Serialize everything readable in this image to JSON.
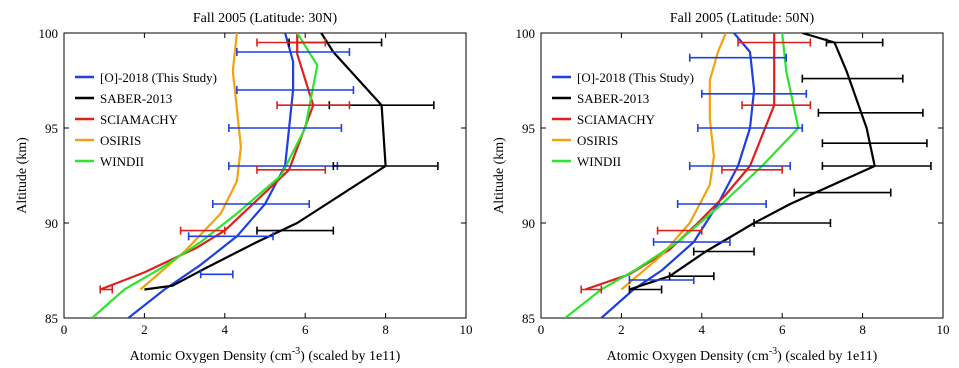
{
  "chart_data": [
    {
      "type": "line",
      "title": "Fall 2005 (Latitude: 30N)",
      "xlabel_main": "Atomic Oxygen Density (cm",
      "xlabel_sup": "-3",
      "xlabel_tail": ") (scaled by 1e11)",
      "ylabel": "Altitude (km)",
      "xlim": [
        0,
        10
      ],
      "ylim": [
        85,
        100
      ],
      "xticks": [
        0,
        2,
        4,
        6,
        8,
        10
      ],
      "yticks": [
        85,
        90,
        95,
        100
      ],
      "legend_position": "upper-left",
      "series": [
        {
          "name": "[O]-2018 (This Study)",
          "color": "#1f3fe0",
          "points": [
            [
              1.6,
              85.0
            ],
            [
              2.5,
              86.5
            ],
            [
              3.4,
              87.8
            ],
            [
              4.3,
              89.3
            ],
            [
              5.0,
              91.0
            ],
            [
              5.5,
              93.0
            ],
            [
              5.6,
              95.0
            ],
            [
              5.7,
              97.0
            ],
            [
              5.7,
              98.5
            ],
            [
              5.5,
              100.0
            ]
          ],
          "errorbars": [
            [
              3.4,
              4.2,
              87.3
            ],
            [
              3.1,
              5.2,
              89.3
            ],
            [
              3.7,
              6.1,
              91.0
            ],
            [
              4.1,
              6.8,
              93.0
            ],
            [
              4.1,
              6.9,
              95.0
            ],
            [
              4.3,
              7.2,
              97.0
            ],
            [
              4.3,
              7.1,
              99.0
            ]
          ]
        },
        {
          "name": "SABER-2013",
          "color": "#000000",
          "points": [
            [
              2.0,
              86.5
            ],
            [
              2.7,
              86.7
            ],
            [
              3.5,
              87.6
            ],
            [
              4.8,
              89.0
            ],
            [
              5.8,
              90.0
            ],
            [
              8.0,
              93.0
            ],
            [
              7.9,
              96.2
            ],
            [
              6.7,
              99.0
            ],
            [
              6.4,
              100.0
            ]
          ],
          "errorbars": [
            [
              4.8,
              6.7,
              89.6
            ],
            [
              6.7,
              9.3,
              93.0
            ],
            [
              6.6,
              9.2,
              96.2
            ],
            [
              5.6,
              7.9,
              99.5
            ]
          ]
        },
        {
          "name": "SCIAMACHY",
          "color": "#e0201b",
          "points": [
            [
              0.9,
              86.5
            ],
            [
              2.0,
              87.4
            ],
            [
              3.3,
              88.7
            ],
            [
              4.0,
              89.6
            ],
            [
              5.6,
              92.8
            ],
            [
              6.2,
              96.2
            ],
            [
              5.8,
              98.9
            ],
            [
              5.8,
              100.0
            ]
          ],
          "errorbars": [
            [
              0.9,
              1.2,
              86.5
            ],
            [
              2.9,
              4.0,
              89.6
            ],
            [
              4.8,
              6.5,
              92.8
            ],
            [
              5.3,
              7.1,
              96.2
            ],
            [
              4.8,
              6.5,
              99.5
            ]
          ]
        },
        {
          "name": "OSIRIS",
          "color": "#f2a20c",
          "points": [
            [
              1.9,
              86.5
            ],
            [
              3.0,
              88.5
            ],
            [
              3.9,
              90.5
            ],
            [
              4.3,
              92.2
            ],
            [
              4.4,
              94.0
            ],
            [
              4.3,
              96.0
            ],
            [
              4.2,
              98.0
            ],
            [
              4.3,
              100.0
            ]
          ]
        },
        {
          "name": "WINDII",
          "color": "#2ee52e",
          "points": [
            [
              0.7,
              85.0
            ],
            [
              1.5,
              86.5
            ],
            [
              2.4,
              87.6
            ],
            [
              3.4,
              89.0
            ],
            [
              4.3,
              90.5
            ],
            [
              5.4,
              92.5
            ],
            [
              6.0,
              95.0
            ],
            [
              6.3,
              98.3
            ],
            [
              5.8,
              100.0
            ]
          ]
        }
      ]
    },
    {
      "type": "line",
      "title": "Fall 2005 (Latitude: 50N)",
      "xlabel_main": "Atomic Oxygen Density (cm",
      "xlabel_sup": "-3",
      "xlabel_tail": ") (scaled by 1e11)",
      "ylabel": "Altitude (km)",
      "xlim": [
        0,
        10
      ],
      "ylim": [
        85,
        100
      ],
      "xticks": [
        0,
        2,
        4,
        6,
        8,
        10
      ],
      "yticks": [
        85,
        90,
        95,
        100
      ],
      "legend_position": "upper-left",
      "series": [
        {
          "name": "[O]-2018 (This Study)",
          "color": "#1f3fe0",
          "points": [
            [
              1.5,
              85.0
            ],
            [
              2.3,
              86.5
            ],
            [
              3.0,
              87.5
            ],
            [
              3.8,
              89.0
            ],
            [
              4.4,
              91.0
            ],
            [
              4.9,
              93.0
            ],
            [
              5.2,
              95.0
            ],
            [
              5.3,
              97.0
            ],
            [
              5.2,
              99.0
            ],
            [
              4.8,
              100.0
            ]
          ],
          "errorbars": [
            [
              2.2,
              3.8,
              87.0
            ],
            [
              2.8,
              4.7,
              89.0
            ],
            [
              3.4,
              5.6,
              91.0
            ],
            [
              3.7,
              6.2,
              93.0
            ],
            [
              3.9,
              6.5,
              95.0
            ],
            [
              4.0,
              6.6,
              96.8
            ],
            [
              3.7,
              6.1,
              98.7
            ]
          ]
        },
        {
          "name": "SABER-2013",
          "color": "#000000",
          "points": [
            [
              2.2,
              86.5
            ],
            [
              3.2,
              87.2
            ],
            [
              4.1,
              88.5
            ],
            [
              5.3,
              90.0
            ],
            [
              6.2,
              91.0
            ],
            [
              8.3,
              93.0
            ],
            [
              8.1,
              95.0
            ],
            [
              7.6,
              98.0
            ],
            [
              7.3,
              99.5
            ],
            [
              6.5,
              100.0
            ]
          ],
          "errorbars": [
            [
              2.2,
              3.0,
              86.5
            ],
            [
              3.2,
              4.3,
              87.2
            ],
            [
              3.8,
              5.3,
              88.5
            ],
            [
              5.3,
              7.2,
              90.0
            ],
            [
              6.3,
              8.7,
              91.6
            ],
            [
              7.0,
              9.7,
              93.0
            ],
            [
              7.0,
              9.6,
              94.2
            ],
            [
              6.9,
              9.5,
              95.8
            ],
            [
              6.5,
              9.0,
              97.6
            ],
            [
              7.1,
              8.5,
              99.5
            ]
          ]
        },
        {
          "name": "SCIAMACHY",
          "color": "#e0201b",
          "points": [
            [
              1.1,
              86.5
            ],
            [
              2.2,
              87.3
            ],
            [
              3.2,
              88.6
            ],
            [
              3.9,
              90.0
            ],
            [
              4.6,
              91.5
            ],
            [
              5.2,
              93.0
            ],
            [
              5.8,
              96.2
            ],
            [
              5.8,
              98.5
            ],
            [
              5.8,
              100.0
            ]
          ],
          "errorbars": [
            [
              1.0,
              1.5,
              86.5
            ],
            [
              2.9,
              4.0,
              89.6
            ],
            [
              4.5,
              6.0,
              92.8
            ],
            [
              5.0,
              6.7,
              96.2
            ],
            [
              4.9,
              6.7,
              99.5
            ]
          ]
        },
        {
          "name": "OSIRIS",
          "color": "#f2a20c",
          "points": [
            [
              2.0,
              86.5
            ],
            [
              3.0,
              88.3
            ],
            [
              3.7,
              90.0
            ],
            [
              4.2,
              92.0
            ],
            [
              4.3,
              93.5
            ],
            [
              4.2,
              95.5
            ],
            [
              4.2,
              97.5
            ],
            [
              4.4,
              99.0
            ],
            [
              4.6,
              100.0
            ]
          ]
        },
        {
          "name": "WINDII",
          "color": "#2ee52e",
          "points": [
            [
              0.6,
              85.0
            ],
            [
              1.5,
              86.5
            ],
            [
              2.4,
              87.6
            ],
            [
              3.4,
              89.0
            ],
            [
              4.5,
              91.0
            ],
            [
              5.5,
              93.0
            ],
            [
              6.4,
              95.0
            ],
            [
              6.1,
              98.0
            ],
            [
              6.0,
              100.0
            ]
          ]
        }
      ]
    }
  ]
}
